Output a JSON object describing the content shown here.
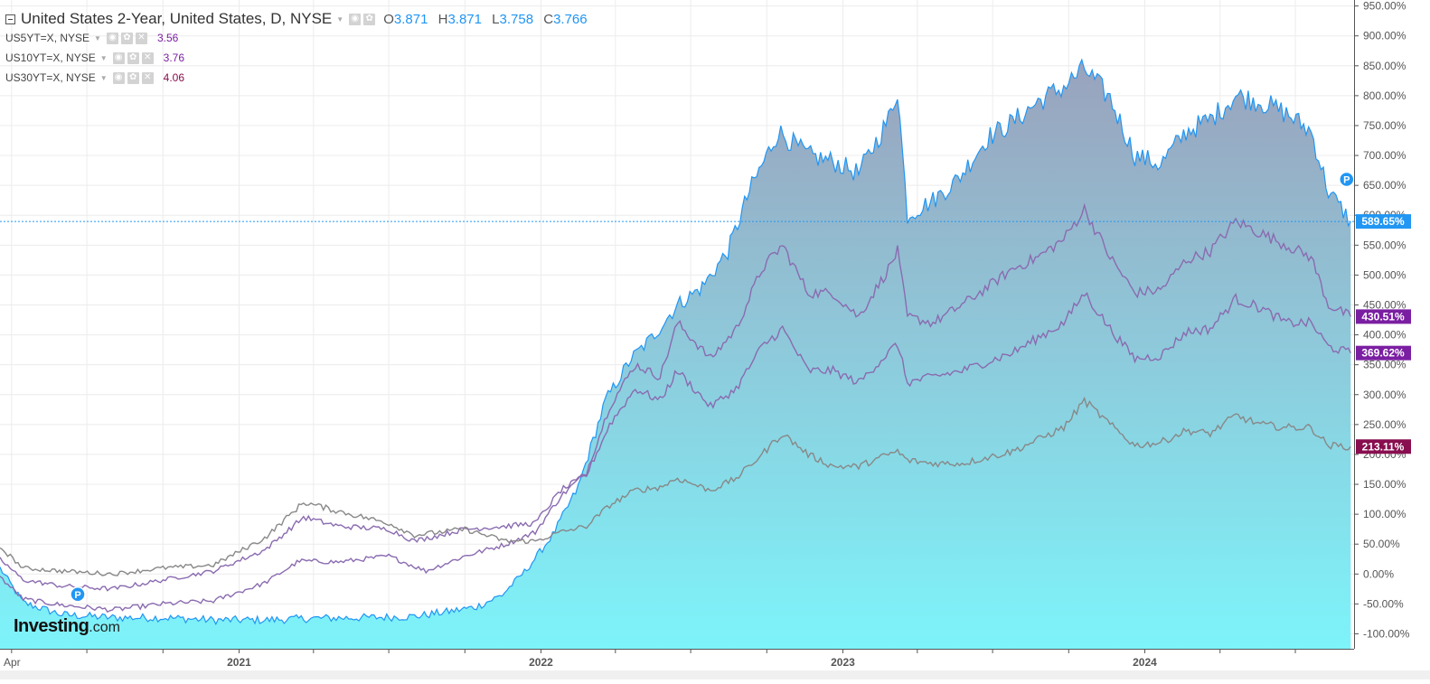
{
  "legend": {
    "main_title": "United States 2-Year, United States, D, NYSE",
    "ohlc": [
      {
        "label": "O",
        "value": "3.871"
      },
      {
        "label": "H",
        "value": "3.871"
      },
      {
        "label": "L",
        "value": "3.758"
      },
      {
        "label": "C",
        "value": "3.766"
      }
    ],
    "series": [
      {
        "symbol": "US5YT=X, NYSE",
        "value": "3.56",
        "color": "#7b1fa2"
      },
      {
        "symbol": "US10YT=X, NYSE",
        "value": "3.76",
        "color": "#7b1fa2"
      },
      {
        "symbol": "US30YT=X, NYSE",
        "value": "4.06",
        "color": "#880e4f"
      }
    ]
  },
  "logo": {
    "brand": "Investing",
    "suffix": ".com"
  },
  "chart_data": {
    "type": "area",
    "title": "United States 2-Year, United States, D, NYSE",
    "y_unit": "%",
    "ylim": [
      -125,
      960
    ],
    "y_ticks": [
      -100,
      -50,
      0,
      50,
      100,
      150,
      200,
      250,
      300,
      350,
      400,
      450,
      500,
      550,
      600,
      650,
      700,
      750,
      800,
      850,
      900,
      950
    ],
    "y_tick_labels": [
      "-100.00%",
      "-50.00%",
      "0.00%",
      "50.00%",
      "100.00%",
      "150.00%",
      "200.00%",
      "250.00%",
      "300.00%",
      "350.00%",
      "400.00%",
      "450.00%",
      "500.00%",
      "550.00%",
      "600.00%",
      "650.00%",
      "700.00%",
      "750.00%",
      "800.00%",
      "850.00%",
      "900.00%",
      "950.00%"
    ],
    "xlim": [
      "2020-03-18",
      "2024-09-10"
    ],
    "x_tick_labels": [
      {
        "date": "2020-04-01",
        "label": "Apr"
      },
      {
        "date": "2021-01-01",
        "label": "2021"
      },
      {
        "date": "2022-01-01",
        "label": "2022"
      },
      {
        "date": "2023-01-01",
        "label": "2023"
      },
      {
        "date": "2024-01-01",
        "label": "2024"
      }
    ],
    "x_minor_ticks": [
      "2020-07-01",
      "2020-10-01",
      "2021-04-01",
      "2021-07-01",
      "2021-10-01",
      "2022-04-01",
      "2022-07-01",
      "2022-10-01",
      "2023-04-01",
      "2023-07-01",
      "2023-10-01",
      "2024-04-01",
      "2024-07-01"
    ],
    "grid": true,
    "price_line": 589.65,
    "markers": [
      {
        "label": "P",
        "date": "2020-06-20",
        "value": -34
      },
      {
        "label": "P",
        "date": "2024-09-01",
        "value": 660
      }
    ],
    "series": [
      {
        "name": "United States 2-Year",
        "symbol": "US2YT=X",
        "color": "#2196f3",
        "fill": true,
        "last_label": "589.65%",
        "points": [
          [
            "2020-03-18",
            10
          ],
          [
            "2020-04-15",
            -48
          ],
          [
            "2020-06-01",
            -68
          ],
          [
            "2020-08-01",
            -73
          ],
          [
            "2020-10-01",
            -73
          ],
          [
            "2020-12-01",
            -77
          ],
          [
            "2021-02-01",
            -77
          ],
          [
            "2021-04-01",
            -74
          ],
          [
            "2021-06-01",
            -73
          ],
          [
            "2021-08-01",
            -71
          ],
          [
            "2021-09-15",
            -62
          ],
          [
            "2021-10-15",
            -55
          ],
          [
            "2021-11-15",
            -35
          ],
          [
            "2021-12-15",
            8
          ],
          [
            "2022-01-15",
            65
          ],
          [
            "2022-02-15",
            145
          ],
          [
            "2022-03-20",
            290
          ],
          [
            "2022-04-20",
            360
          ],
          [
            "2022-05-15",
            395
          ],
          [
            "2022-06-15",
            450
          ],
          [
            "2022-07-15",
            480
          ],
          [
            "2022-08-15",
            540
          ],
          [
            "2022-09-10",
            640
          ],
          [
            "2022-10-15",
            740
          ],
          [
            "2022-11-20",
            700
          ],
          [
            "2022-12-20",
            690
          ],
          [
            "2023-01-20",
            670
          ],
          [
            "2023-02-25",
            760
          ],
          [
            "2023-03-08",
            810
          ],
          [
            "2023-03-20",
            600
          ],
          [
            "2023-04-20",
            625
          ],
          [
            "2023-05-20",
            660
          ],
          [
            "2023-06-25",
            730
          ],
          [
            "2023-07-25",
            755
          ],
          [
            "2023-08-25",
            790
          ],
          [
            "2023-09-25",
            815
          ],
          [
            "2023-10-20",
            845
          ],
          [
            "2023-11-20",
            795
          ],
          [
            "2023-12-20",
            700
          ],
          [
            "2024-01-20",
            685
          ],
          [
            "2024-02-20",
            740
          ],
          [
            "2024-03-20",
            760
          ],
          [
            "2024-04-20",
            800
          ],
          [
            "2024-05-20",
            790
          ],
          [
            "2024-06-20",
            770
          ],
          [
            "2024-07-20",
            740
          ],
          [
            "2024-08-10",
            640
          ],
          [
            "2024-09-06",
            589.65
          ]
        ]
      },
      {
        "name": "US5YT=X",
        "symbol": "US5YT=X",
        "color": "#8a6bb0",
        "last_label": "430.51%",
        "label_color": "#7b1fa2",
        "points": [
          [
            "2020-03-18",
            -5
          ],
          [
            "2020-04-15",
            -42
          ],
          [
            "2020-06-01",
            -52
          ],
          [
            "2020-08-01",
            -60
          ],
          [
            "2020-10-01",
            -50
          ],
          [
            "2020-12-01",
            -45
          ],
          [
            "2021-02-01",
            -15
          ],
          [
            "2021-03-15",
            22
          ],
          [
            "2021-05-01",
            20
          ],
          [
            "2021-07-01",
            30
          ],
          [
            "2021-08-15",
            5
          ],
          [
            "2021-10-01",
            30
          ],
          [
            "2021-11-20",
            50
          ],
          [
            "2021-12-25",
            70
          ],
          [
            "2022-01-25",
            130
          ],
          [
            "2022-02-25",
            170
          ],
          [
            "2022-03-25",
            280
          ],
          [
            "2022-04-25",
            350
          ],
          [
            "2022-05-25",
            330
          ],
          [
            "2022-06-15",
            420
          ],
          [
            "2022-07-25",
            360
          ],
          [
            "2022-08-25",
            410
          ],
          [
            "2022-09-25",
            510
          ],
          [
            "2022-10-20",
            550
          ],
          [
            "2022-11-20",
            470
          ],
          [
            "2022-12-20",
            470
          ],
          [
            "2023-01-20",
            430
          ],
          [
            "2023-02-25",
            510
          ],
          [
            "2023-03-08",
            540
          ],
          [
            "2023-03-20",
            430
          ],
          [
            "2023-04-20",
            420
          ],
          [
            "2023-05-25",
            450
          ],
          [
            "2023-06-25",
            480
          ],
          [
            "2023-07-25",
            510
          ],
          [
            "2023-08-25",
            530
          ],
          [
            "2023-09-25",
            560
          ],
          [
            "2023-10-20",
            610
          ],
          [
            "2023-11-20",
            530
          ],
          [
            "2023-12-20",
            470
          ],
          [
            "2024-01-20",
            475
          ],
          [
            "2024-02-20",
            525
          ],
          [
            "2024-03-20",
            540
          ],
          [
            "2024-04-20",
            590
          ],
          [
            "2024-05-20",
            570
          ],
          [
            "2024-06-20",
            550
          ],
          [
            "2024-07-20",
            530
          ],
          [
            "2024-08-10",
            450
          ],
          [
            "2024-09-06",
            430.51
          ]
        ]
      },
      {
        "name": "US10YT=X",
        "symbol": "US10YT=X",
        "color": "#8a6bb0",
        "last_label": "369.62%",
        "label_color": "#7b1fa2",
        "points": [
          [
            "2020-03-18",
            25
          ],
          [
            "2020-04-15",
            -10
          ],
          [
            "2020-06-01",
            -20
          ],
          [
            "2020-08-01",
            -25
          ],
          [
            "2020-10-01",
            -10
          ],
          [
            "2020-12-01",
            5
          ],
          [
            "2021-02-01",
            40
          ],
          [
            "2021-03-20",
            95
          ],
          [
            "2021-05-01",
            80
          ],
          [
            "2021-07-01",
            75
          ],
          [
            "2021-08-01",
            55
          ],
          [
            "2021-10-01",
            75
          ],
          [
            "2021-11-20",
            80
          ],
          [
            "2021-12-25",
            85
          ],
          [
            "2022-01-25",
            140
          ],
          [
            "2022-02-25",
            165
          ],
          [
            "2022-03-25",
            250
          ],
          [
            "2022-04-25",
            310
          ],
          [
            "2022-05-25",
            290
          ],
          [
            "2022-06-15",
            340
          ],
          [
            "2022-07-25",
            280
          ],
          [
            "2022-08-25",
            310
          ],
          [
            "2022-09-25",
            380
          ],
          [
            "2022-10-20",
            410
          ],
          [
            "2022-11-20",
            340
          ],
          [
            "2022-12-20",
            340
          ],
          [
            "2023-01-20",
            320
          ],
          [
            "2023-02-25",
            370
          ],
          [
            "2023-03-08",
            385
          ],
          [
            "2023-03-20",
            320
          ],
          [
            "2023-04-20",
            330
          ],
          [
            "2023-05-25",
            340
          ],
          [
            "2023-06-25",
            355
          ],
          [
            "2023-07-25",
            370
          ],
          [
            "2023-08-25",
            395
          ],
          [
            "2023-09-25",
            420
          ],
          [
            "2023-10-20",
            470
          ],
          [
            "2023-11-20",
            410
          ],
          [
            "2023-12-20",
            360
          ],
          [
            "2024-01-20",
            365
          ],
          [
            "2024-02-20",
            405
          ],
          [
            "2024-03-20",
            410
          ],
          [
            "2024-04-20",
            460
          ],
          [
            "2024-05-20",
            445
          ],
          [
            "2024-06-20",
            420
          ],
          [
            "2024-07-20",
            420
          ],
          [
            "2024-08-10",
            380
          ],
          [
            "2024-09-06",
            369.62
          ]
        ]
      },
      {
        "name": "US30YT=X",
        "symbol": "US30YT=X",
        "color": "#888888",
        "last_label": "213.11%",
        "label_color": "#880e4f",
        "points": [
          [
            "2020-03-18",
            45
          ],
          [
            "2020-04-15",
            10
          ],
          [
            "2020-06-01",
            5
          ],
          [
            "2020-08-01",
            0
          ],
          [
            "2020-10-01",
            10
          ],
          [
            "2020-12-01",
            15
          ],
          [
            "2021-02-01",
            60
          ],
          [
            "2021-03-20",
            120
          ],
          [
            "2021-05-01",
            105
          ],
          [
            "2021-07-01",
            85
          ],
          [
            "2021-08-01",
            65
          ],
          [
            "2021-10-01",
            75
          ],
          [
            "2021-11-20",
            55
          ],
          [
            "2021-12-25",
            55
          ],
          [
            "2022-01-25",
            70
          ],
          [
            "2022-02-25",
            80
          ],
          [
            "2022-03-25",
            115
          ],
          [
            "2022-04-25",
            140
          ],
          [
            "2022-05-25",
            145
          ],
          [
            "2022-06-15",
            160
          ],
          [
            "2022-07-25",
            140
          ],
          [
            "2022-08-25",
            160
          ],
          [
            "2022-09-25",
            200
          ],
          [
            "2022-10-20",
            235
          ],
          [
            "2022-11-20",
            200
          ],
          [
            "2022-12-20",
            180
          ],
          [
            "2023-01-20",
            180
          ],
          [
            "2023-02-25",
            200
          ],
          [
            "2023-03-08",
            205
          ],
          [
            "2023-03-20",
            190
          ],
          [
            "2023-04-20",
            185
          ],
          [
            "2023-05-25",
            185
          ],
          [
            "2023-06-25",
            195
          ],
          [
            "2023-07-25",
            205
          ],
          [
            "2023-08-25",
            225
          ],
          [
            "2023-09-25",
            245
          ],
          [
            "2023-10-20",
            290
          ],
          [
            "2023-11-20",
            250
          ],
          [
            "2023-12-20",
            215
          ],
          [
            "2024-01-20",
            220
          ],
          [
            "2024-02-20",
            240
          ],
          [
            "2024-03-20",
            235
          ],
          [
            "2024-04-20",
            265
          ],
          [
            "2024-05-20",
            250
          ],
          [
            "2024-06-20",
            245
          ],
          [
            "2024-07-20",
            245
          ],
          [
            "2024-08-10",
            215
          ],
          [
            "2024-09-06",
            213.11
          ]
        ]
      }
    ]
  }
}
